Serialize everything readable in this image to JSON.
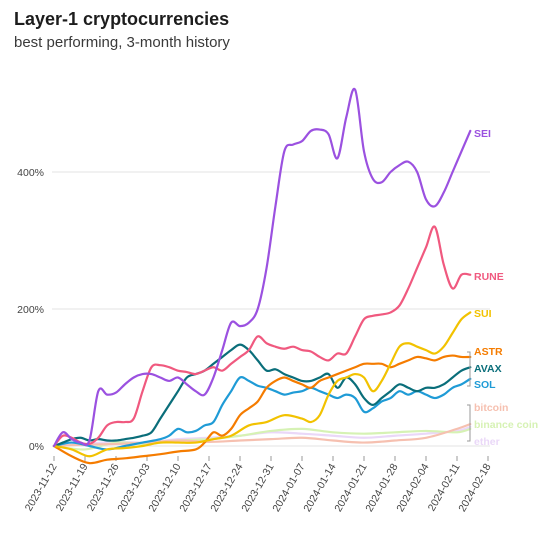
{
  "chart_data": {
    "type": "line",
    "title": "Layer-1 cryptocurrencies",
    "subtitle": "best performing, 3-month history",
    "xlabel": "",
    "ylabel": "",
    "y_unit": "%",
    "ylim": [
      -15,
      560
    ],
    "y_ticks": [
      0,
      200,
      400
    ],
    "y_tick_labels": [
      "0%",
      "200%",
      "400%"
    ],
    "x_ticks": [
      "2023-11-12",
      "2023-11-19",
      "2023-11-26",
      "2023-12-03",
      "2023-12-10",
      "2023-12-17",
      "2023-12-24",
      "2023-12-31",
      "2024-01-07",
      "2024-01-14",
      "2024-01-21",
      "2024-01-28",
      "2024-02-04",
      "2024-02-11",
      "2024-02-18"
    ],
    "x_range": [
      "2023-11-12",
      "2024-02-18"
    ],
    "grid": "horizontal",
    "legend": "direct labels at line ends",
    "series": [
      {
        "name": "SEI",
        "color": "#9b51e0",
        "x": [
          "2023-11-12",
          "2023-11-14",
          "2023-11-16",
          "2023-11-18",
          "2023-11-20",
          "2023-11-22",
          "2023-11-24",
          "2023-11-26",
          "2023-11-28",
          "2023-11-30",
          "2023-12-02",
          "2023-12-04",
          "2023-12-06",
          "2023-12-08",
          "2023-12-10",
          "2023-12-12",
          "2023-12-14",
          "2023-12-16",
          "2023-12-18",
          "2023-12-20",
          "2023-12-22",
          "2023-12-24",
          "2023-12-26",
          "2023-12-28",
          "2023-12-30",
          "2024-01-01",
          "2024-01-03",
          "2024-01-05",
          "2024-01-07",
          "2024-01-09",
          "2024-01-11",
          "2024-01-13",
          "2024-01-15",
          "2024-01-17",
          "2024-01-19",
          "2024-01-21",
          "2024-01-23",
          "2024-01-25",
          "2024-01-27",
          "2024-01-29",
          "2024-01-31",
          "2024-02-02",
          "2024-02-04",
          "2024-02-06",
          "2024-02-08",
          "2024-02-10",
          "2024-02-12",
          "2024-02-14"
        ],
        "y": [
          0,
          20,
          10,
          5,
          8,
          80,
          75,
          78,
          90,
          100,
          105,
          105,
          100,
          95,
          100,
          90,
          80,
          75,
          100,
          140,
          180,
          175,
          180,
          200,
          260,
          350,
          430,
          440,
          445,
          460,
          462,
          455,
          420,
          480,
          520,
          430,
          390,
          385,
          400,
          410,
          415,
          400,
          360,
          350,
          370,
          400,
          430,
          460
        ]
      },
      {
        "name": "RUNE",
        "color": "#f0597f",
        "x": [
          "2023-11-12",
          "2023-11-14",
          "2023-11-16",
          "2023-11-18",
          "2023-11-20",
          "2023-11-22",
          "2023-11-24",
          "2023-11-26",
          "2023-11-28",
          "2023-11-30",
          "2023-12-02",
          "2023-12-04",
          "2023-12-06",
          "2023-12-08",
          "2023-12-10",
          "2023-12-12",
          "2023-12-14",
          "2023-12-16",
          "2023-12-18",
          "2023-12-20",
          "2023-12-22",
          "2023-12-24",
          "2023-12-26",
          "2023-12-28",
          "2023-12-30",
          "2024-01-01",
          "2024-01-03",
          "2024-01-05",
          "2024-01-07",
          "2024-01-09",
          "2024-01-11",
          "2024-01-13",
          "2024-01-15",
          "2024-01-17",
          "2024-01-19",
          "2024-01-21",
          "2024-01-23",
          "2024-01-25",
          "2024-01-27",
          "2024-01-29",
          "2024-01-31",
          "2024-02-02",
          "2024-02-04",
          "2024-02-06",
          "2024-02-08",
          "2024-02-10",
          "2024-02-12",
          "2024-02-14"
        ],
        "y": [
          0,
          15,
          12,
          5,
          3,
          12,
          30,
          35,
          35,
          40,
          80,
          115,
          118,
          115,
          110,
          108,
          105,
          110,
          115,
          110,
          120,
          130,
          140,
          160,
          150,
          145,
          142,
          145,
          140,
          138,
          130,
          125,
          135,
          135,
          160,
          185,
          190,
          192,
          195,
          205,
          230,
          260,
          290,
          320,
          265,
          230,
          250,
          250
        ]
      },
      {
        "name": "SUI",
        "color": "#f2c200",
        "x": [
          "2023-11-12",
          "2023-11-16",
          "2023-11-20",
          "2023-11-24",
          "2023-11-28",
          "2023-12-02",
          "2023-12-06",
          "2023-12-10",
          "2023-12-14",
          "2023-12-18",
          "2023-12-22",
          "2023-12-26",
          "2023-12-30",
          "2024-01-03",
          "2024-01-07",
          "2024-01-09",
          "2024-01-11",
          "2024-01-13",
          "2024-01-15",
          "2024-01-17",
          "2024-01-19",
          "2024-01-21",
          "2024-01-23",
          "2024-01-25",
          "2024-01-27",
          "2024-01-29",
          "2024-01-31",
          "2024-02-02",
          "2024-02-04",
          "2024-02-06",
          "2024-02-08",
          "2024-02-10",
          "2024-02-12",
          "2024-02-14"
        ],
        "y": [
          0,
          -5,
          -15,
          -5,
          -3,
          0,
          5,
          5,
          5,
          10,
          15,
          30,
          35,
          45,
          40,
          35,
          45,
          75,
          95,
          100,
          105,
          100,
          80,
          95,
          120,
          145,
          150,
          145,
          140,
          135,
          145,
          165,
          185,
          195
        ]
      },
      {
        "name": "ASTR",
        "color": "#f57c00",
        "x": [
          "2023-11-12",
          "2023-11-16",
          "2023-11-20",
          "2023-11-24",
          "2023-11-28",
          "2023-12-02",
          "2023-12-06",
          "2023-12-10",
          "2023-12-14",
          "2023-12-16",
          "2023-12-18",
          "2023-12-20",
          "2023-12-22",
          "2023-12-24",
          "2023-12-26",
          "2023-12-28",
          "2023-12-30",
          "2024-01-01",
          "2024-01-03",
          "2024-01-05",
          "2024-01-07",
          "2024-01-09",
          "2024-01-11",
          "2024-01-13",
          "2024-01-15",
          "2024-01-17",
          "2024-01-19",
          "2024-01-21",
          "2024-01-23",
          "2024-01-25",
          "2024-01-27",
          "2024-01-29",
          "2024-01-31",
          "2024-02-02",
          "2024-02-04",
          "2024-02-06",
          "2024-02-08",
          "2024-02-10",
          "2024-02-12",
          "2024-02-14"
        ],
        "y": [
          0,
          -15,
          -25,
          -20,
          -18,
          -15,
          -12,
          -8,
          -5,
          5,
          20,
          15,
          25,
          45,
          55,
          65,
          85,
          95,
          100,
          95,
          90,
          85,
          95,
          100,
          105,
          110,
          115,
          120,
          120,
          120,
          115,
          120,
          125,
          130,
          128,
          125,
          130,
          132,
          130,
          130
        ]
      },
      {
        "name": "AVAX",
        "color": "#0a6e7a",
        "x": [
          "2023-11-12",
          "2023-11-14",
          "2023-11-16",
          "2023-11-18",
          "2023-11-20",
          "2023-11-22",
          "2023-11-24",
          "2023-11-26",
          "2023-11-28",
          "2023-11-30",
          "2023-12-02",
          "2023-12-04",
          "2023-12-06",
          "2023-12-08",
          "2023-12-10",
          "2023-12-12",
          "2023-12-14",
          "2023-12-16",
          "2023-12-18",
          "2023-12-20",
          "2023-12-22",
          "2023-12-24",
          "2023-12-26",
          "2023-12-28",
          "2023-12-30",
          "2024-01-01",
          "2024-01-03",
          "2024-01-05",
          "2024-01-07",
          "2024-01-09",
          "2024-01-11",
          "2024-01-13",
          "2024-01-15",
          "2024-01-17",
          "2024-01-19",
          "2024-01-21",
          "2024-01-23",
          "2024-01-25",
          "2024-01-27",
          "2024-01-29",
          "2024-01-31",
          "2024-02-02",
          "2024-02-04",
          "2024-02-06",
          "2024-02-08",
          "2024-02-10",
          "2024-02-12",
          "2024-02-14"
        ],
        "y": [
          0,
          5,
          10,
          12,
          8,
          10,
          8,
          8,
          10,
          12,
          15,
          20,
          40,
          60,
          80,
          100,
          105,
          110,
          120,
          130,
          140,
          148,
          140,
          125,
          110,
          112,
          105,
          100,
          95,
          95,
          100,
          105,
          85,
          100,
          90,
          70,
          60,
          70,
          80,
          90,
          85,
          80,
          85,
          85,
          90,
          100,
          110,
          115
        ]
      },
      {
        "name": "SOL",
        "color": "#1f9bd6",
        "x": [
          "2023-11-12",
          "2023-11-16",
          "2023-11-20",
          "2023-11-24",
          "2023-11-28",
          "2023-12-02",
          "2023-12-06",
          "2023-12-08",
          "2023-12-10",
          "2023-12-12",
          "2023-12-14",
          "2023-12-16",
          "2023-12-18",
          "2023-12-20",
          "2023-12-22",
          "2023-12-24",
          "2023-12-26",
          "2023-12-28",
          "2023-12-30",
          "2024-01-01",
          "2024-01-03",
          "2024-01-05",
          "2024-01-07",
          "2024-01-09",
          "2024-01-11",
          "2024-01-13",
          "2024-01-15",
          "2024-01-17",
          "2024-01-19",
          "2024-01-21",
          "2024-01-23",
          "2024-01-25",
          "2024-01-27",
          "2024-01-29",
          "2024-01-31",
          "2024-02-02",
          "2024-02-04",
          "2024-02-06",
          "2024-02-08",
          "2024-02-10",
          "2024-02-12",
          "2024-02-14"
        ],
        "y": [
          0,
          5,
          0,
          -5,
          0,
          5,
          10,
          15,
          25,
          20,
          22,
          30,
          35,
          60,
          80,
          100,
          95,
          88,
          85,
          80,
          75,
          78,
          80,
          85,
          80,
          75,
          70,
          75,
          70,
          50,
          55,
          65,
          70,
          80,
          75,
          80,
          75,
          70,
          75,
          85,
          90,
          98
        ]
      },
      {
        "name": "bitcoin",
        "color": "#f6c0b0",
        "x": [
          "2023-11-12",
          "2023-11-19",
          "2023-11-26",
          "2023-12-03",
          "2023-12-10",
          "2023-12-17",
          "2023-12-24",
          "2023-12-31",
          "2024-01-07",
          "2024-01-14",
          "2024-01-21",
          "2024-01-28",
          "2024-02-04",
          "2024-02-11",
          "2024-02-14"
        ],
        "y": [
          0,
          2,
          3,
          5,
          8,
          6,
          8,
          10,
          12,
          8,
          5,
          8,
          12,
          25,
          32
        ]
      },
      {
        "name": "binance coin",
        "color": "#d6f2b4",
        "x": [
          "2023-11-12",
          "2023-11-19",
          "2023-11-26",
          "2023-12-03",
          "2023-12-10",
          "2023-12-17",
          "2023-12-24",
          "2023-12-31",
          "2024-01-07",
          "2024-01-14",
          "2024-01-21",
          "2024-01-28",
          "2024-02-04",
          "2024-02-11",
          "2024-02-14"
        ],
        "y": [
          0,
          -5,
          5,
          3,
          8,
          10,
          15,
          22,
          25,
          20,
          18,
          20,
          22,
          20,
          25
        ]
      },
      {
        "name": "ether",
        "color": "#ead8f8",
        "x": [
          "2023-11-12",
          "2023-11-19",
          "2023-11-26",
          "2023-12-03",
          "2023-12-10",
          "2023-12-17",
          "2023-12-24",
          "2023-12-31",
          "2024-01-07",
          "2024-01-14",
          "2024-01-21",
          "2024-01-28",
          "2024-02-04",
          "2024-02-11",
          "2024-02-14"
        ],
        "y": [
          0,
          3,
          6,
          5,
          10,
          12,
          15,
          20,
          18,
          15,
          12,
          15,
          18,
          22,
          28
        ]
      }
    ]
  }
}
